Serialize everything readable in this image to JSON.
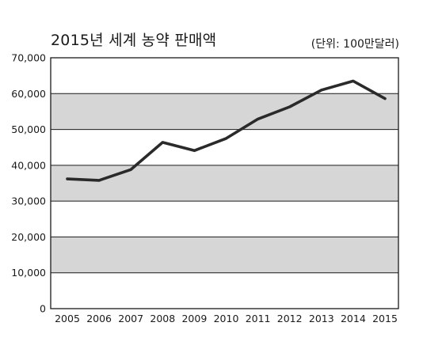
{
  "chart_data": {
    "type": "line",
    "title": "2015년 세계 농약 판매액",
    "unit": "(단위: 100만달러)",
    "xlabel": "",
    "ylabel": "",
    "categories": [
      "2005",
      "2006",
      "2007",
      "2008",
      "2009",
      "2010",
      "2011",
      "2012",
      "2013",
      "2014",
      "2015"
    ],
    "series": [
      {
        "values": [
          36200,
          35800,
          38800,
          46400,
          44100,
          47500,
          52900,
          56300,
          61000,
          63500,
          58600
        ]
      }
    ],
    "ylim": [
      0,
      70000
    ],
    "yticks": [
      0,
      10000,
      20000,
      30000,
      40000,
      50000,
      60000,
      70000
    ],
    "ytick_labels": [
      "0",
      "10,000",
      "20,000",
      "30,000",
      "40,000",
      "50,000",
      "60,000",
      "70,000"
    ],
    "grid": true,
    "band_fill": "#d6d6d6",
    "line_color": "#2a2a2a"
  }
}
